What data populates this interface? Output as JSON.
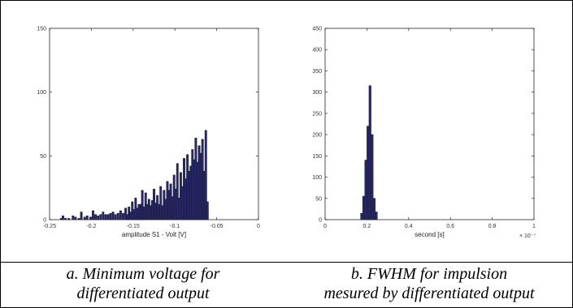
{
  "captions": {
    "a": [
      "a.  Minimum voltage for",
      "differentiated output"
    ],
    "b": [
      "b.  FWHM for impulsion",
      "mesured by differentiated output"
    ]
  },
  "chart_data": [
    {
      "type": "bar",
      "title": "",
      "xlabel": "amplitude S1 - Volt [V]",
      "ylabel": "",
      "xlim": [
        -0.25,
        0
      ],
      "ylim": [
        0,
        150
      ],
      "xticks": [
        "-0.25",
        "-0.2",
        "-0.15",
        "-0.1",
        "-0.05",
        "0"
      ],
      "yticks": [
        "0",
        "50",
        "100",
        "150"
      ],
      "bar_width": 0.0022,
      "x": [
        -0.236,
        -0.234,
        -0.231,
        -0.227,
        -0.222,
        -0.219,
        -0.215,
        -0.212,
        -0.208,
        -0.205,
        -0.201,
        -0.198,
        -0.195,
        -0.192,
        -0.189,
        -0.186,
        -0.183,
        -0.18,
        -0.177,
        -0.174,
        -0.171,
        -0.168,
        -0.165,
        -0.162,
        -0.159,
        -0.157,
        -0.155,
        -0.153,
        -0.151,
        -0.149,
        -0.147,
        -0.145,
        -0.143,
        -0.141,
        -0.139,
        -0.137,
        -0.135,
        -0.133,
        -0.131,
        -0.129,
        -0.127,
        -0.125,
        -0.123,
        -0.121,
        -0.119,
        -0.117,
        -0.115,
        -0.113,
        -0.111,
        -0.109,
        -0.107,
        -0.105,
        -0.103,
        -0.101,
        -0.099,
        -0.097,
        -0.095,
        -0.093,
        -0.091,
        -0.089,
        -0.087,
        -0.085,
        -0.083,
        -0.081,
        -0.079,
        -0.077,
        -0.075,
        -0.073,
        -0.071,
        -0.069,
        -0.067,
        -0.065,
        -0.063,
        -0.061
      ],
      "values": [
        1,
        3,
        1,
        1,
        3,
        2,
        1,
        6,
        2,
        3,
        2,
        7,
        4,
        3,
        4,
        6,
        4,
        4,
        5,
        6,
        4,
        5,
        7,
        5,
        9,
        4,
        10,
        6,
        14,
        8,
        17,
        9,
        12,
        12,
        23,
        10,
        21,
        12,
        16,
        11,
        15,
        24,
        13,
        19,
        12,
        26,
        11,
        23,
        16,
        30,
        23,
        28,
        18,
        35,
        24,
        44,
        17,
        37,
        26,
        48,
        32,
        51,
        38,
        42,
        55,
        47,
        64,
        45,
        58,
        52,
        63,
        38,
        70,
        14
      ]
    },
    {
      "type": "bar",
      "title": "",
      "xlabel": "second [s]",
      "ylabel": "",
      "xlim": [
        0,
        1
      ],
      "ylim": [
        0,
        450
      ],
      "xticks": [
        "0",
        "0.2",
        "0.4",
        "0.6",
        "0.8",
        "1"
      ],
      "yticks": [
        "0",
        "50",
        "100",
        "150",
        "200",
        "250",
        "300",
        "350",
        "400",
        "450"
      ],
      "x_multiplier": "× 10⁻⁷",
      "bar_width": 0.0098,
      "x": [
        0.175,
        0.185,
        0.195,
        0.205,
        0.215,
        0.225,
        0.235,
        0.245
      ],
      "values": [
        15,
        55,
        140,
        220,
        315,
        200,
        50,
        18
      ]
    }
  ]
}
